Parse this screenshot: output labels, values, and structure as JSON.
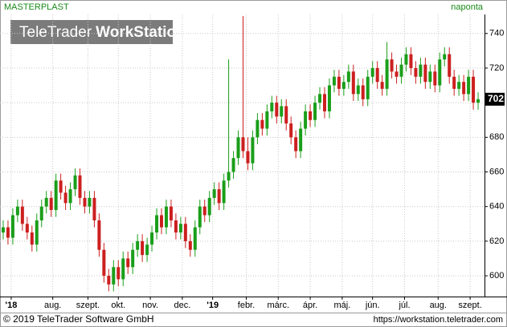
{
  "chart_data": {
    "type": "candlestick",
    "title": "MASTERPLAST",
    "subtitle": "naponta",
    "brand": "TeleTrader",
    "brand_bold": "WorkStation",
    "copyright": "© 2019 TeleTrader Software GmbH",
    "url": "https://workstation.teletrader.com",
    "up_color": "#1a9e1a",
    "down_color": "#cc1f1f",
    "grid": true,
    "xlim": [
      -2,
      301
    ],
    "ylim": [
      588,
      751
    ],
    "yticks": [
      600,
      620,
      640,
      660,
      680,
      700,
      720,
      740
    ],
    "xticks": [
      {
        "value": 5,
        "label": "'18"
      },
      {
        "value": 31,
        "label": "aug."
      },
      {
        "value": 53,
        "label": "szept."
      },
      {
        "value": 72,
        "label": "okt."
      },
      {
        "value": 92,
        "label": "nov."
      },
      {
        "value": 112,
        "label": "dec."
      },
      {
        "value": 131,
        "label": "'19"
      },
      {
        "value": 152,
        "label": "febr."
      },
      {
        "value": 172,
        "label": "márc."
      },
      {
        "value": 192,
        "label": "ápr."
      },
      {
        "value": 212,
        "label": "máj."
      },
      {
        "value": 231,
        "label": "jún."
      },
      {
        "value": 251,
        "label": "júl."
      },
      {
        "value": 272,
        "label": "aug."
      },
      {
        "value": 292,
        "label": "szept."
      }
    ],
    "x": [
      0,
      3,
      6,
      9,
      12,
      15,
      18,
      21,
      24,
      27,
      30,
      33,
      36,
      39,
      42,
      45,
      48,
      51,
      54,
      57,
      60,
      63,
      66,
      69,
      72,
      75,
      78,
      81,
      84,
      87,
      90,
      93,
      96,
      99,
      102,
      105,
      108,
      111,
      114,
      117,
      120,
      123,
      126,
      129,
      132,
      135,
      138,
      141,
      144,
      147,
      150,
      153,
      156,
      159,
      162,
      165,
      168,
      171,
      174,
      177,
      180,
      183,
      186,
      189,
      192,
      195,
      198,
      201,
      204,
      207,
      210,
      213,
      216,
      219,
      222,
      225,
      228,
      231,
      234,
      237,
      240,
      243,
      246,
      249,
      252,
      255,
      258,
      261,
      264,
      267,
      270,
      273,
      276,
      279,
      282,
      285,
      288,
      291,
      294,
      297
    ],
    "open": [
      625,
      628,
      622,
      635,
      640,
      630,
      625,
      618,
      632,
      640,
      645,
      638,
      655,
      648,
      642,
      650,
      658,
      645,
      640,
      645,
      632,
      615,
      600,
      595,
      605,
      598,
      610,
      605,
      615,
      620,
      612,
      618,
      625,
      635,
      628,
      640,
      632,
      625,
      630,
      620,
      615,
      628,
      640,
      635,
      645,
      650,
      642,
      655,
      660,
      668,
      680,
      672,
      665,
      680,
      690,
      685,
      695,
      700,
      692,
      698,
      688,
      680,
      672,
      685,
      695,
      690,
      700,
      705,
      695,
      710,
      715,
      708,
      712,
      718,
      705,
      710,
      702,
      715,
      720,
      712,
      708,
      725,
      718,
      715,
      722,
      728,
      720,
      715,
      722,
      712,
      718,
      710,
      725,
      728,
      715,
      708,
      712,
      705,
      715,
      700
    ],
    "high": [
      632,
      632,
      639,
      644,
      644,
      634,
      629,
      636,
      644,
      649,
      649,
      659,
      659,
      652,
      654,
      662,
      662,
      649,
      649,
      649,
      636,
      619,
      604,
      609,
      609,
      614,
      614,
      619,
      624,
      624,
      622,
      629,
      639,
      639,
      644,
      644,
      636,
      634,
      634,
      624,
      632,
      644,
      644,
      649,
      654,
      654,
      659,
      725,
      672,
      684,
      750,
      680,
      684,
      694,
      694,
      699,
      704,
      704,
      702,
      702,
      692,
      684,
      689,
      699,
      699,
      704,
      709,
      709,
      714,
      719,
      719,
      716,
      722,
      722,
      714,
      714,
      719,
      724,
      724,
      716,
      735,
      729,
      722,
      726,
      732,
      732,
      724,
      726,
      726,
      722,
      722,
      729,
      732,
      732,
      719,
      716,
      716,
      719,
      719,
      706
    ],
    "low": [
      621,
      618,
      618,
      631,
      626,
      621,
      614,
      614,
      628,
      636,
      634,
      634,
      644,
      638,
      638,
      646,
      641,
      636,
      636,
      628,
      611,
      596,
      591,
      591,
      594,
      594,
      601,
      601,
      611,
      608,
      608,
      614,
      621,
      624,
      624,
      628,
      621,
      621,
      616,
      611,
      611,
      624,
      631,
      631,
      641,
      638,
      638,
      651,
      656,
      664,
      668,
      661,
      661,
      676,
      681,
      681,
      691,
      688,
      688,
      684,
      676,
      668,
      668,
      681,
      686,
      686,
      696,
      691,
      691,
      706,
      704,
      704,
      708,
      701,
      701,
      698,
      698,
      711,
      708,
      704,
      704,
      714,
      711,
      711,
      718,
      716,
      711,
      711,
      708,
      708,
      706,
      706,
      721,
      711,
      704,
      704,
      701,
      701,
      696,
      696
    ],
    "close": [
      628,
      622,
      635,
      640,
      630,
      625,
      618,
      632,
      640,
      645,
      638,
      655,
      648,
      642,
      650,
      658,
      645,
      640,
      645,
      632,
      615,
      600,
      595,
      605,
      598,
      610,
      605,
      615,
      620,
      612,
      618,
      625,
      635,
      628,
      640,
      632,
      625,
      630,
      620,
      615,
      628,
      640,
      635,
      645,
      650,
      642,
      655,
      660,
      668,
      680,
      672,
      665,
      680,
      690,
      685,
      695,
      700,
      692,
      698,
      688,
      680,
      672,
      685,
      695,
      690,
      700,
      705,
      695,
      710,
      715,
      708,
      712,
      718,
      705,
      710,
      702,
      715,
      720,
      712,
      708,
      725,
      718,
      715,
      722,
      728,
      720,
      715,
      722,
      712,
      718,
      710,
      725,
      728,
      715,
      708,
      712,
      705,
      715,
      700,
      702
    ]
  }
}
